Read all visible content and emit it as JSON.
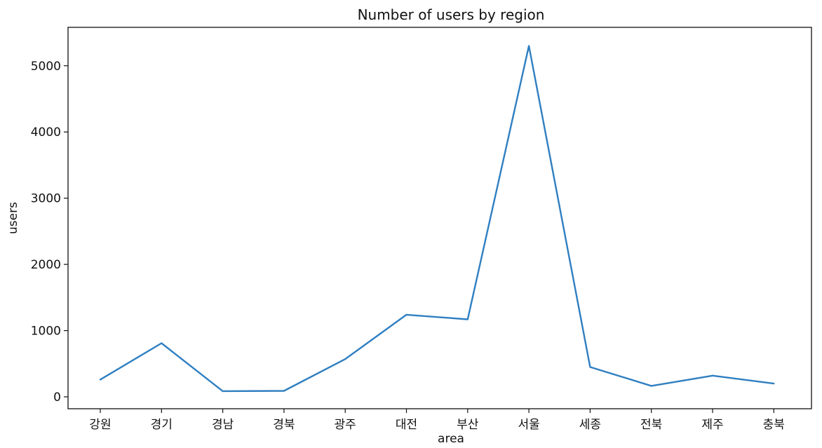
{
  "chart_data": {
    "type": "line",
    "title": "Number of users by region",
    "xlabel": "area",
    "ylabel": "users",
    "categories": [
      "강원",
      "경기",
      "경남",
      "경북",
      "광주",
      "대전",
      "부산",
      "서울",
      "세종",
      "전북",
      "제주",
      "충북"
    ],
    "series": [
      {
        "values": [
          260,
          810,
          85,
          90,
          570,
          1240,
          1170,
          5300,
          450,
          165,
          320,
          200
        ],
        "color": "#2f7fc1"
      }
    ],
    "ylim": [
      -180,
      5580
    ],
    "yticks": [
      0,
      1000,
      2000,
      3000,
      4000,
      5000
    ],
    "grid": false
  }
}
